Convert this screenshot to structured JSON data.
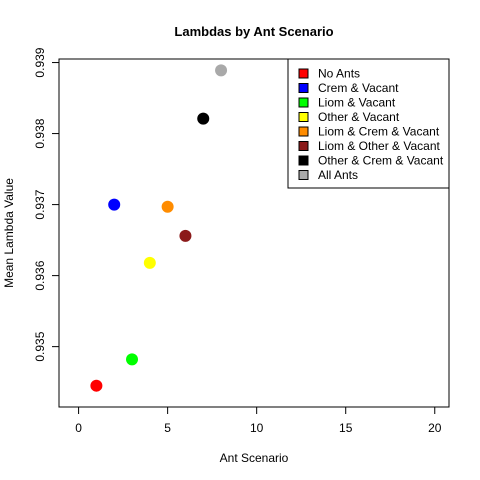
{
  "chart_data": {
    "type": "scatter",
    "title": "Lambdas by Ant Scenario",
    "xlabel": "Ant Scenario",
    "ylabel": "Mean Lambda Value",
    "xlim": [
      -1.1,
      20.8
    ],
    "ylim": [
      0.93415,
      0.93905
    ],
    "xticks": [
      0,
      5,
      10,
      15,
      20
    ],
    "xtick_labels": [
      "0",
      "5",
      "10",
      "15",
      "20"
    ],
    "yticks": [
      0.935,
      0.936,
      0.937,
      0.938,
      0.939
    ],
    "ytick_labels": [
      "0.935",
      "0.936",
      "0.937",
      "0.938",
      "0.939"
    ],
    "grid": false,
    "legend_position": "top-right",
    "series": [
      {
        "name": "No Ants",
        "x": 1,
        "y": 0.93445,
        "color": "#ff0000"
      },
      {
        "name": "Crem & Vacant",
        "x": 2,
        "y": 0.937,
        "color": "#0000ff"
      },
      {
        "name": "Liom & Vacant",
        "x": 3,
        "y": 0.93482,
        "color": "#00ff00"
      },
      {
        "name": "Other & Vacant",
        "x": 4,
        "y": 0.93618,
        "color": "#ffff00"
      },
      {
        "name": "Liom & Crem & Vacant",
        "x": 5,
        "y": 0.93697,
        "color": "#ff8c00"
      },
      {
        "name": "Liom & Other & Vacant",
        "x": 6,
        "y": 0.93656,
        "color": "#8b1a1a"
      },
      {
        "name": "Other & Crem & Vacant",
        "x": 7,
        "y": 0.93821,
        "color": "#000000"
      },
      {
        "name": "All Ants",
        "x": 8,
        "y": 0.93889,
        "color": "#a9a9a9"
      }
    ]
  }
}
